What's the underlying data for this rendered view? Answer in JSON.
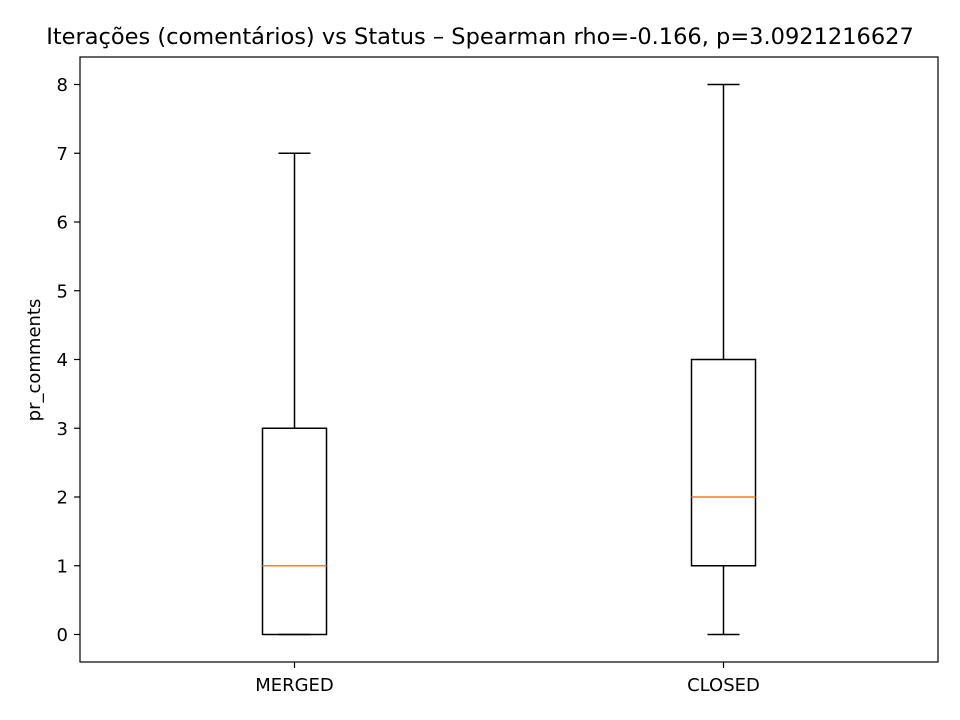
{
  "chart_data": {
    "type": "boxplot",
    "title": "Iterações (comentários) vs Status – Spearman rho=-0.166, p=3.0921216627",
    "xlabel": "",
    "ylabel": "pr_comments",
    "categories": [
      "MERGED",
      "CLOSED"
    ],
    "boxes": [
      {
        "category": "MERGED",
        "whisker_low": 0,
        "q1": 0,
        "median": 1,
        "q3": 3,
        "whisker_high": 7
      },
      {
        "category": "CLOSED",
        "whisker_low": 0,
        "q1": 1,
        "median": 2,
        "q3": 4,
        "whisker_high": 8
      }
    ],
    "yticks": [
      0,
      1,
      2,
      3,
      4,
      5,
      6,
      7,
      8
    ],
    "ylim": [
      -0.4,
      8.4
    ],
    "grid": false,
    "colors": {
      "box": "#000000",
      "median": "#ff7f0e"
    }
  }
}
